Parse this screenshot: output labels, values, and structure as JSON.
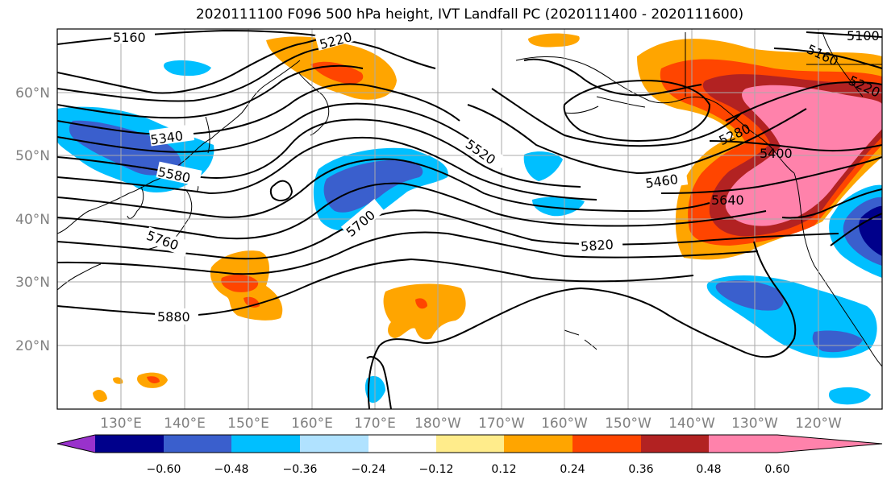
{
  "title": "2020111100 F096 500 hPa height, IVT Landfall PC (2020111400 - 2020111600)",
  "lon_ticks": [
    "130°E",
    "140°E",
    "150°E",
    "160°E",
    "170°E",
    "180°W",
    "170°W",
    "160°W",
    "150°W",
    "140°W",
    "130°W",
    "120°W"
  ],
  "lat_ticks": [
    "60°N",
    "50°N",
    "40°N",
    "30°N",
    "20°N"
  ],
  "colorbar": {
    "colors": [
      "#9932cc",
      "#00008b",
      "#3a5fcd",
      "#00bfff",
      "#b0e2ff",
      "#ffffff",
      "#ffec8b",
      "#ffa500",
      "#ff4500",
      "#b22222",
      "#ff82ab"
    ],
    "tick_labels": [
      "−0.60",
      "−0.48",
      "−0.36",
      "−0.24",
      "−0.12",
      "0.12",
      "0.24",
      "0.36",
      "0.48",
      "0.60"
    ]
  },
  "contour_labels": [
    "5160",
    "5220",
    "5340",
    "5580",
    "5760",
    "5700",
    "5520",
    "5460",
    "5820",
    "5880",
    "5640",
    "5400",
    "5280",
    "5100"
  ]
}
